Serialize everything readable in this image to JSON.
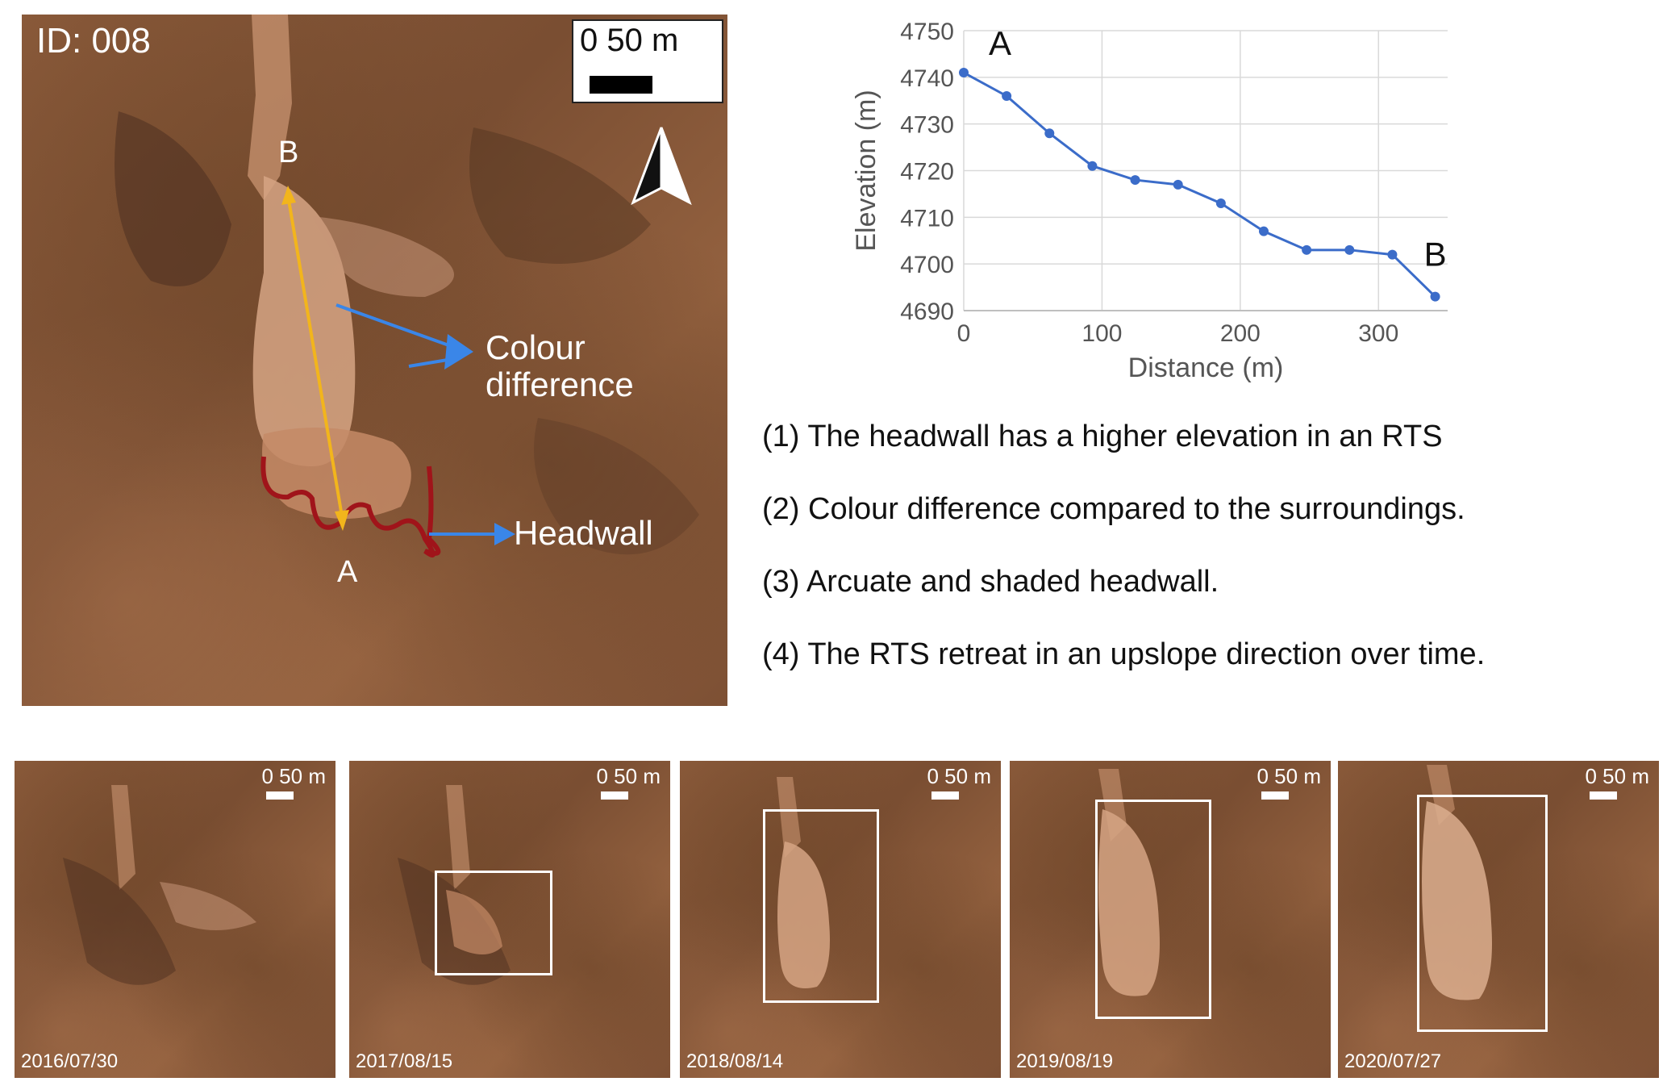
{
  "main_image": {
    "id_label": "ID: 008",
    "scale_text": "0   50 m",
    "point_a": "A",
    "point_b": "B",
    "colour_label_1": "Colour",
    "colour_label_2": "difference",
    "headwall_label": "Headwall"
  },
  "chart_data": {
    "type": "line",
    "xlabel": "Distance (m)",
    "ylabel": "Elevation (m)",
    "xlim": [
      0,
      350
    ],
    "ylim": [
      4690,
      4750
    ],
    "xticks": [
      0,
      100,
      200,
      300
    ],
    "yticks": [
      4690,
      4700,
      4710,
      4720,
      4730,
      4740,
      4750
    ],
    "grid": true,
    "series": [
      {
        "x": [
          0,
          31,
          62,
          93,
          124,
          155,
          186,
          217,
          248,
          279,
          310,
          341
        ],
        "y": [
          4741,
          4736,
          4728,
          4721,
          4718,
          4717,
          4713,
          4707,
          4703,
          4703,
          4702,
          4693
        ],
        "color": "#3b6cc9"
      }
    ],
    "annotations": [
      {
        "text": "A",
        "x": 0,
        "y": 4741
      },
      {
        "text": "B",
        "x": 341,
        "y": 4693
      }
    ]
  },
  "criteria": [
    "(1) The headwall has a higher elevation in an RTS",
    "(2) Colour difference compared to the surroundings.",
    "(3) Arcuate and shaded headwall.",
    "(4) The RTS retreat in an upslope direction over time."
  ],
  "timeseries": [
    {
      "date": "2016/07/30",
      "scale": "0 50 m"
    },
    {
      "date": "2017/08/15",
      "scale": "0 50 m"
    },
    {
      "date": "2018/08/14",
      "scale": "0 50 m"
    },
    {
      "date": "2019/08/19",
      "scale": "0 50 m"
    },
    {
      "date": "2020/07/27",
      "scale": "0 50 m"
    }
  ],
  "colors": {
    "headwall_outline": "#a0141a",
    "profile_arrow": "#f2b51c",
    "annotation_arrow": "#3a86e8",
    "chart_line": "#3b6cc9"
  }
}
